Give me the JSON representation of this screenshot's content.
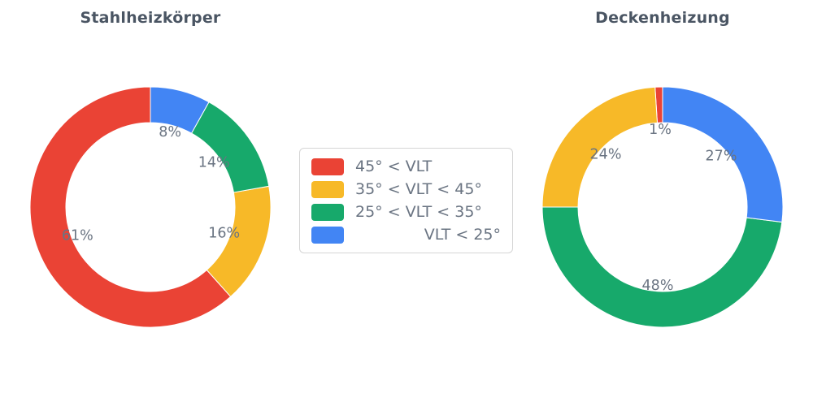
{
  "page": {
    "background": "#ffffff"
  },
  "text_colors": {
    "title": "#4a5563",
    "labels": "#6a7482"
  },
  "chart_data": [
    {
      "type": "pie",
      "subtype": "donut",
      "title": "Stahlheizkörper",
      "categories": [
        "45° < VLT",
        "35° < VLT < 45°",
        "25° < VLT < 35°",
        "VLT < 25°"
      ],
      "values": [
        61,
        16,
        14,
        8
      ],
      "value_labels": [
        "61%",
        "16%",
        "14%",
        "8%"
      ],
      "colors": [
        "#ea4335",
        "#f7b928",
        "#17a96b",
        "#4285f4"
      ],
      "slice_names": [
        "45-plus",
        "35-to-45",
        "25-to-35",
        "under-25"
      ],
      "start_angle_deg": 90,
      "direction": "counterclockwise",
      "hole_ratio": 0.7
    },
    {
      "type": "pie",
      "subtype": "donut",
      "title": "Deckenheizung",
      "categories": [
        "45° < VLT",
        "35° < VLT < 45°",
        "25° < VLT < 35°",
        "VLT < 25°"
      ],
      "values": [
        1,
        24,
        48,
        27
      ],
      "value_labels": [
        "1%",
        "24%",
        "48%",
        "27%"
      ],
      "colors": [
        "#ea4335",
        "#f7b928",
        "#17a96b",
        "#4285f4"
      ],
      "slice_names": [
        "45-plus",
        "35-to-45",
        "25-to-35",
        "under-25"
      ],
      "start_angle_deg": 90,
      "direction": "counterclockwise",
      "hole_ratio": 0.7
    }
  ],
  "legend": {
    "position": "center-between-charts",
    "items": [
      {
        "key": "45-plus",
        "label": "45° < VLT",
        "color": "#ea4335"
      },
      {
        "key": "35-to-45",
        "label": "35° < VLT < 45°",
        "color": "#f7b928"
      },
      {
        "key": "25-to-35",
        "label": "25° < VLT < 35°",
        "color": "#17a96b"
      },
      {
        "key": "under-25",
        "label": "VLT < 25°",
        "color": "#4285f4"
      }
    ]
  }
}
